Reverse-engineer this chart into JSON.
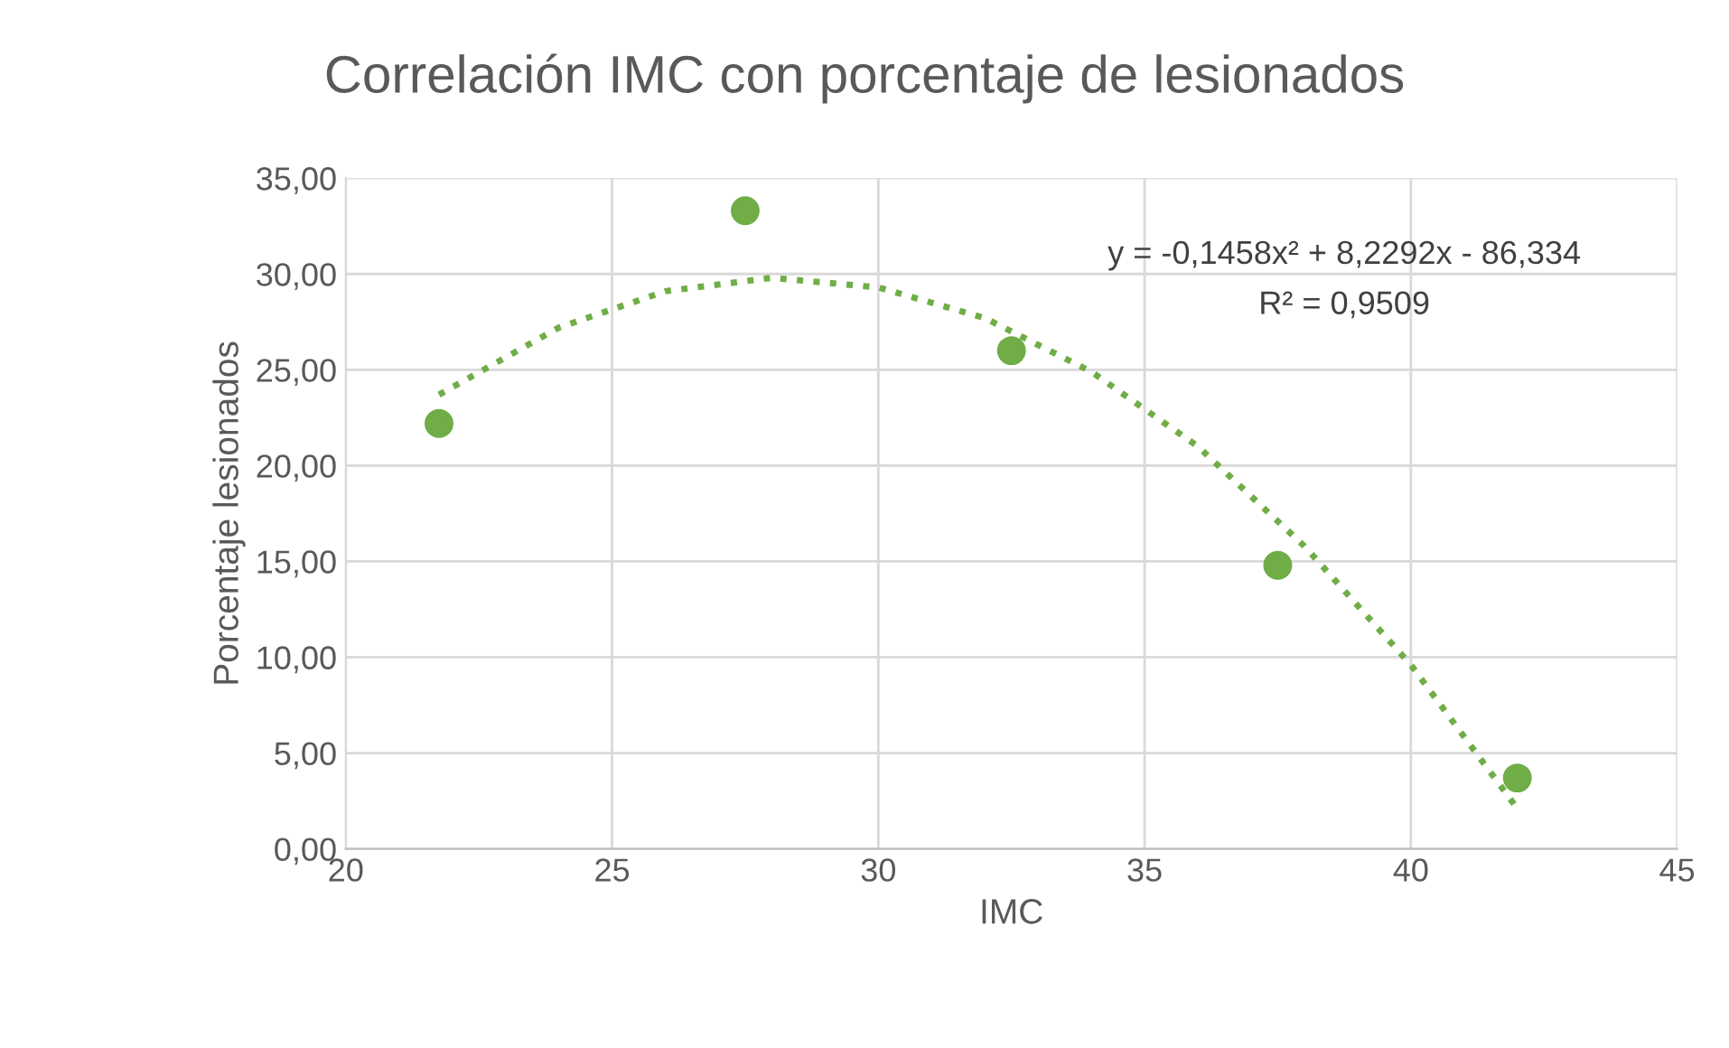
{
  "chart_data": {
    "type": "scatter",
    "title": "Correlación IMC con porcentaje de lesionados",
    "xlabel": "IMC",
    "ylabel": "Porcentaje lesionados",
    "series": [
      {
        "color": "#70ad47",
        "x": [
          21.75,
          27.5,
          32.5,
          37.5,
          42
        ],
        "values": [
          22.2,
          33.3,
          26.0,
          14.8,
          3.7
        ],
        "marker": "circle"
      },
      {
        "type": "line",
        "color": "#70ad47",
        "line_style": "dotted",
        "marker": "none",
        "x": [
          21.75,
          24,
          26,
          28,
          30,
          32,
          34,
          36,
          38,
          40,
          42
        ],
        "values": [
          23.7,
          27.2,
          29.1,
          29.8,
          29.3,
          27.7,
          24.9,
          21.0,
          15.8,
          9.6,
          2.1
        ]
      }
    ],
    "annotations": [
      "y = -0,1458x² + 8,2292x - 86,334",
      "R² = 0,9509"
    ],
    "xlim": [
      20,
      45
    ],
    "xticks": [
      20,
      25,
      30,
      35,
      40,
      45
    ],
    "ylim": [
      0,
      35
    ],
    "yticks": [
      {
        "value": 0,
        "label": "0,00"
      },
      {
        "value": 5,
        "label": "5,00"
      },
      {
        "value": 10,
        "label": "10,00"
      },
      {
        "value": 15,
        "label": "15,00"
      },
      {
        "value": 20,
        "label": "20,00"
      },
      {
        "value": 25,
        "label": "25,00"
      },
      {
        "value": 30,
        "label": "30,00"
      },
      {
        "value": 35,
        "label": "35,00"
      }
    ],
    "grid": true
  }
}
